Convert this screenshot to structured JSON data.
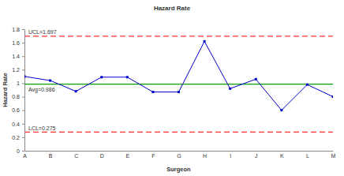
{
  "chart_data": {
    "type": "line",
    "title": "Hazard Rate",
    "x_label": "Surgeon",
    "y_label": "Hazard Rate",
    "categories": [
      "A",
      "B",
      "C",
      "D",
      "E",
      "F",
      "G",
      "H",
      "I",
      "J",
      "K",
      "L",
      "M"
    ],
    "values": [
      1.1,
      1.04,
      0.88,
      1.09,
      1.09,
      0.87,
      0.87,
      1.62,
      0.92,
      1.06,
      0.6,
      0.98,
      0.8
    ],
    "color": "#0000cc",
    "marker": "square",
    "ylim": [
      0,
      1.8
    ],
    "yticks": [
      0,
      0.2,
      0.4,
      0.6,
      0.8,
      1,
      1.2,
      1.4,
      1.6,
      1.8
    ],
    "grid": false,
    "reference_lines": [
      {
        "label": "UCL=1.697",
        "value": 1.697,
        "color": "#ff3333",
        "line_style": "dashed"
      },
      {
        "label": "Avg=0.986",
        "value": 0.986,
        "color": "#00a000",
        "line_style": "solid"
      },
      {
        "label": "LCL=0.275",
        "value": 0.275,
        "color": "#ff3333",
        "line_style": "dashed"
      }
    ]
  }
}
